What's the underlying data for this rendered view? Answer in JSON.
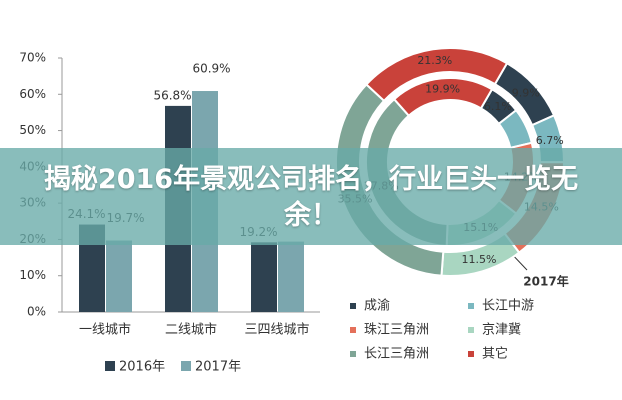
{
  "headline": "揭秘2016年景观公司排名，行业巨头一览无余！",
  "chart_data": [
    {
      "type": "bar",
      "categories": [
        "一线城市",
        "二线城市",
        "三四线城市"
      ],
      "series": [
        {
          "name": "2016年",
          "color": "#2e4150",
          "values": [
            24.1,
            56.8,
            19.2
          ],
          "value_labels": [
            "24.1%",
            "56.8%",
            "19.2%"
          ]
        },
        {
          "name": "2017年",
          "color": "#7ba6ae",
          "values": [
            19.7,
            60.9,
            19.4
          ],
          "value_labels": [
            "19.7%",
            "60.9%",
            null
          ]
        }
      ],
      "ylim": [
        0,
        70
      ],
      "yticks": [
        {
          "value": 0,
          "label": "0%"
        },
        {
          "value": 10,
          "label": "10%"
        },
        {
          "value": 20,
          "label": "20%"
        },
        {
          "value": 30,
          "label": "30%"
        },
        {
          "value": 40,
          "label": "40%"
        },
        {
          "value": 50,
          "label": "50%"
        },
        {
          "value": 60,
          "label": "60%"
        },
        {
          "value": 70,
          "label": "70%"
        }
      ],
      "legend": "bottom"
    },
    {
      "type": "donut",
      "categories": [
        "成渝",
        "长江中游",
        "珠江三角洲",
        "京津冀",
        "长江三角洲",
        "其它"
      ],
      "colors": [
        "#2e4150",
        "#7bb8c0",
        "#e4705a",
        "#a9d6c1",
        "#7fa596",
        "#c9423a"
      ],
      "series": [
        {
          "values": [
            6.1,
            6.9,
            14.2,
            15.1,
            37.8,
            19.9
          ],
          "value_labels": [
            "6.1%",
            null,
            "14.2%",
            "15.1%",
            "37.8%",
            "19.9%"
          ]
        },
        {
          "name": "2017年",
          "values": [
            9.9,
            6.7,
            14.5,
            11.5,
            35.5,
            21.3
          ],
          "value_labels": [
            "9.9%",
            "6.7%",
            "14.5%",
            "11.5%",
            "35.5%",
            "21.3%"
          ]
        }
      ],
      "legend": "bottom"
    }
  ]
}
